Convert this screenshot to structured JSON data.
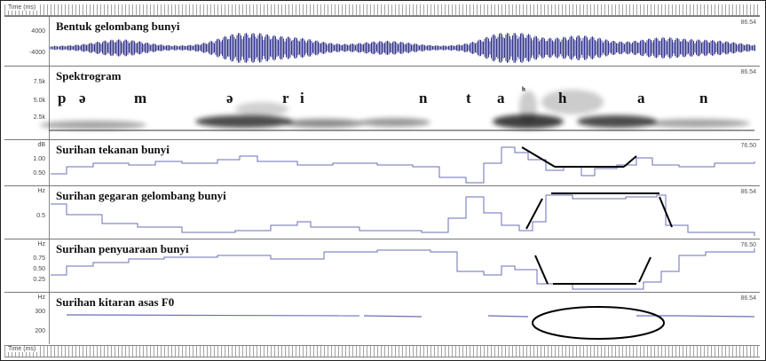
{
  "rulers": {
    "top_label": "Time (ms)",
    "bottom_label": "Time (ms)"
  },
  "panels": [
    {
      "title": "Bentuk gelombang bunyi",
      "axis_ticks": [
        "4000",
        "-4000"
      ],
      "right_value": "86.54"
    },
    {
      "title": "Spektrogram",
      "axis_ticks": [
        "7.5k",
        "5.0k",
        "2.5k"
      ],
      "right_value": "86.54",
      "phonemes": [
        "p",
        "ə",
        "m",
        "ə",
        "r",
        "i",
        "n",
        "t",
        "a",
        "ʰ",
        "h",
        "a",
        "n"
      ]
    },
    {
      "title": "Surihan tekanan bunyi",
      "axis_ticks": [
        "dB",
        "1.00",
        "0.50"
      ],
      "right_value": "76.50"
    },
    {
      "title": "Surihan gegaran gelombang bunyi",
      "axis_ticks": [
        "Hz",
        "0.5"
      ],
      "right_value": "86.54"
    },
    {
      "title": "Surihan penyuaraan bunyi",
      "axis_ticks": [
        "Hz",
        "0.75",
        "0.50",
        "0.25"
      ],
      "right_value": "76.50"
    },
    {
      "title": "Surihan kitaran asas F0",
      "axis_ticks": [
        "Hz",
        "300",
        "200"
      ],
      "right_value": "86.54"
    }
  ],
  "colors": {
    "trace": "#6a6fb5",
    "waveform": "#1c1f7a",
    "annotation": "#000000"
  }
}
